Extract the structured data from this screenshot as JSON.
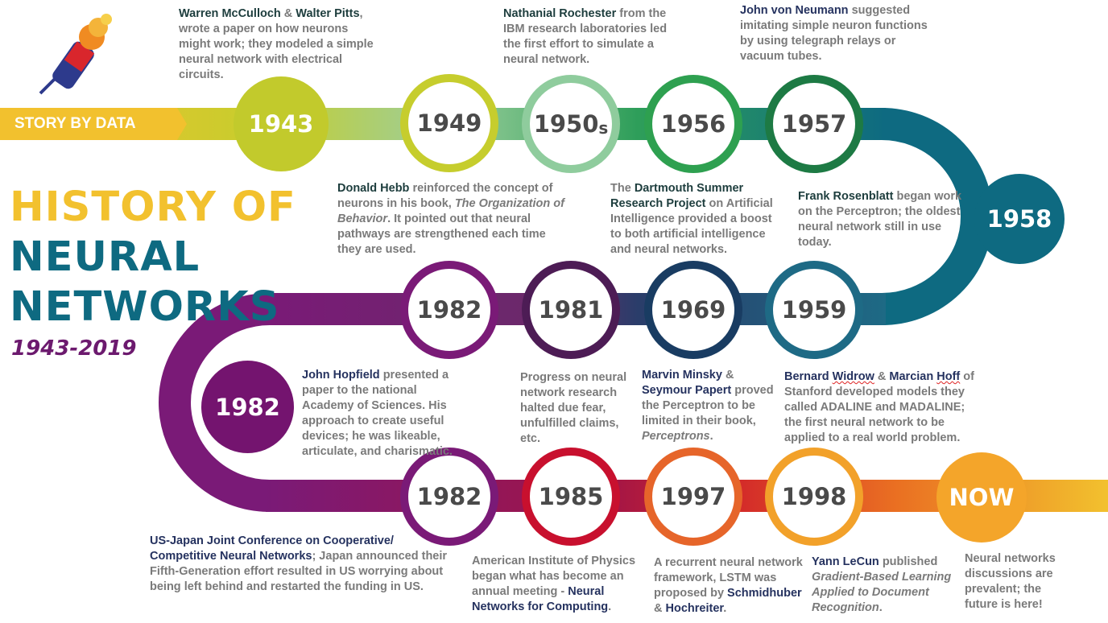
{
  "brand": {
    "label": "STORY BY DATA",
    "icon": "torch-icon"
  },
  "title": {
    "line1": "HISTORY OF",
    "line2": "NEURAL",
    "line3": "NETWORKS",
    "subtitle": "1943-2019"
  },
  "colors": {
    "yellow": "#f2c12e",
    "teal": "#0e6a81",
    "purple": "#7a1a77",
    "orange": "#f4a52a",
    "red": "#c8102e"
  },
  "years": {
    "y1943": "1943",
    "y1949": "1949",
    "y1950s": "1950",
    "y1950s_suffix": "s",
    "y1956": "1956",
    "y1957": "1957",
    "y1958": "1958",
    "y1959": "1959",
    "y1969": "1969",
    "y1981": "1981",
    "y1982a": "1982",
    "y1982b": "1982",
    "y1982c": "1982",
    "y1985": "1985",
    "y1997": "1997",
    "y1998": "1998",
    "now": "NOW"
  },
  "notes": {
    "n1943": {
      "h1": "Warren McCulloch",
      "amp": " & ",
      "h2": "Walter Pitts",
      "rest": ", wrote a paper on how neurons might work; they modeled a simple neural network with electrical circuits."
    },
    "n1949": {
      "h": "Donald Hebb",
      "a": " reinforced the concept of neurons in his book, ",
      "i": "The Organization of Behavior",
      "b": ". It pointed out that neural pathways are strengthened each time they are used."
    },
    "n1950s": {
      "h": "Nathanial Rochester",
      "rest": " from the IBM research laboratories led the first effort to simulate a neural network."
    },
    "n1956": {
      "a": "The ",
      "h": "Dartmouth Summer Research Project",
      "rest": " on Artificial Intelligence provided a boost to both artificial intelligence and neural networks."
    },
    "n1957": {
      "h": "John von Neumann",
      "rest": " suggested imitating simple neuron functions by using telegraph relays or vacuum tubes."
    },
    "n1958": {
      "h": "Frank Rosenblatt",
      "rest": " began work on the Perceptron; the oldest neural network still in use today."
    },
    "n1959": {
      "h1": "Bernard ",
      "u1": "Widrow",
      "amp": " & ",
      "h2": "Marcian ",
      "u2": "Hoff",
      "rest": " of Stanford developed models they called ADALINE and MADALINE; the first neural network to be applied to a real world problem."
    },
    "n1969": {
      "h1": "Marvin Minsky",
      "amp": " & ",
      "h2": "Seymour Papert",
      "rest": " proved the Perceptron to be limited in their book, ",
      "i": "Perceptrons",
      "end": "."
    },
    "n1981": {
      "text": "Progress on neural network research halted due fear, unfulfilled claims, etc."
    },
    "n1982": {
      "h": "John Hopfield",
      "rest": " presented a paper to the national Academy of Sciences. His approach to create useful devices; he was likeable, articulate, and charismatic."
    },
    "n1982b": {
      "h": "US-Japan Joint Conference on Cooperative/ Competitive Neural Networks",
      "rest": "; Japan announced their Fifth-Generation effort resulted in US worrying about being left behind and restarted the funding in US."
    },
    "n1985": {
      "a": "American Institute of Physics began what has become an annual meeting - ",
      "h": "Neural Networks for Computing",
      "end": "."
    },
    "n1997": {
      "a": "A recurrent neural network framework, LSTM was proposed by ",
      "h1": "Schmidhuber",
      "amp": " & ",
      "h2": "Hochreiter",
      "end": "."
    },
    "n1998": {
      "h": "Yann LeCun",
      "rest": " published ",
      "i": "Gradient-Based Learning Applied to Document Recognition",
      "end": "."
    },
    "nnow": {
      "text": "Neural networks discussions are prevalent; the future is here!"
    }
  }
}
